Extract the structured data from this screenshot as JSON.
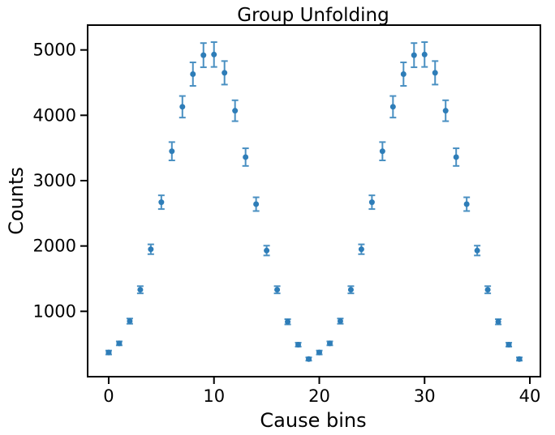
{
  "chart_data": {
    "type": "scatter",
    "title": "Group Unfolding",
    "xlabel": "Cause bins",
    "ylabel": "Counts",
    "xlim": [
      -2,
      41
    ],
    "ylim": [
      0,
      5380
    ],
    "xticks": [
      0,
      10,
      20,
      30,
      40
    ],
    "yticks": [
      1000,
      2000,
      3000,
      4000,
      5000
    ],
    "grid": false,
    "colors": {
      "marker": "#2e7db8",
      "errorbar": "#4a90c2",
      "axis": "#000000"
    },
    "series": [
      {
        "x": [
          0,
          1,
          2,
          3,
          4,
          5,
          6,
          7,
          8,
          9,
          10,
          11,
          12,
          13,
          14,
          15,
          16,
          17,
          18,
          19,
          20,
          21,
          22,
          23,
          24,
          25,
          26,
          27,
          28,
          29,
          30,
          31,
          32,
          33,
          34,
          35,
          36,
          37,
          38,
          39
        ],
        "y": [
          370,
          510,
          850,
          1330,
          1950,
          2670,
          3450,
          4130,
          4630,
          4920,
          4930,
          4650,
          4070,
          3360,
          2640,
          1930,
          1330,
          840,
          490,
          270,
          370,
          510,
          850,
          1330,
          1950,
          2670,
          3450,
          4130,
          4630,
          4920,
          4930,
          4650,
          4070,
          3360,
          2640,
          1930,
          1330,
          840,
          490,
          270
        ],
        "yerr": [
          30,
          30,
          40,
          55,
          75,
          105,
          140,
          165,
          180,
          185,
          190,
          180,
          160,
          135,
          105,
          75,
          55,
          40,
          30,
          25,
          30,
          30,
          40,
          55,
          75,
          105,
          140,
          165,
          180,
          185,
          190,
          180,
          160,
          135,
          105,
          75,
          55,
          40,
          30,
          25
        ]
      }
    ]
  }
}
